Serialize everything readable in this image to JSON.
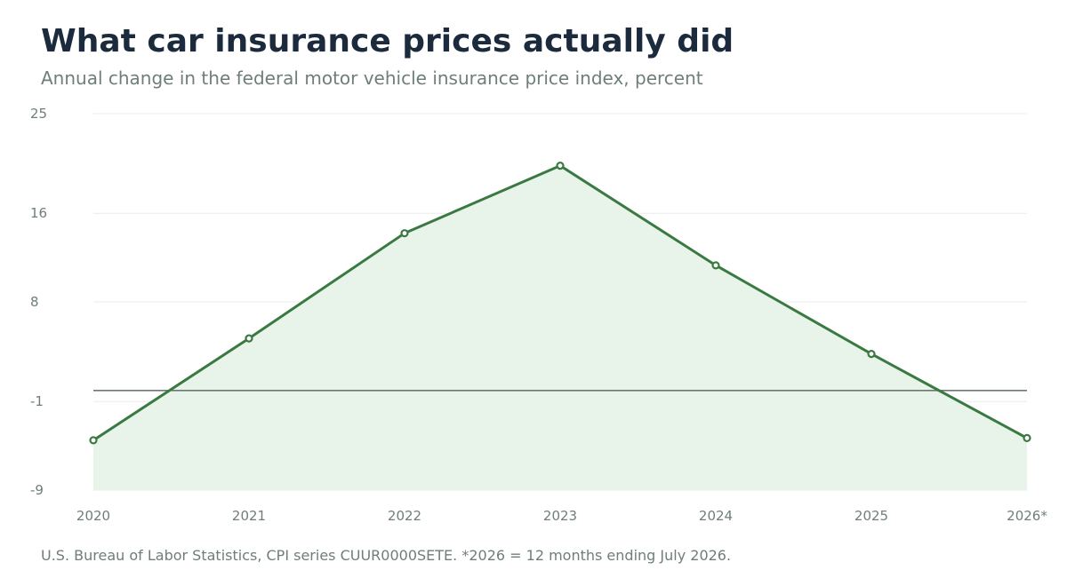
{
  "title": "What car insurance prices actually did",
  "subtitle": "Annual change in the federal motor vehicle insurance price index, percent",
  "source": "U.S. Bureau of Labor Statistics, CPI series CUUR0000SETE.  *2026 = 12 months ending July 2026.",
  "colors": {
    "line": "#3a7a42",
    "area": "#e8f4ea",
    "grid": "#ebebeb",
    "zero_line": "#6e7772",
    "text_dark": "#1b2a3d",
    "text_muted": "#6f7f77"
  },
  "chart_data": {
    "type": "area",
    "title": "What car insurance prices actually did",
    "subtitle": "Annual change in the federal motor vehicle insurance price index, percent",
    "xlabel": "",
    "ylabel": "",
    "categories": [
      "2020",
      "2021",
      "2022",
      "2023",
      "2024",
      "2025",
      "2026*"
    ],
    "series": [
      {
        "values": [
          -4.5,
          4.7,
          14.2,
          20.3,
          11.3,
          3.3,
          -4.3
        ]
      }
    ],
    "ylim": [
      -9,
      25
    ],
    "yticks": [
      25,
      16,
      8,
      -1,
      -9
    ],
    "reference_line": 0,
    "grid": true,
    "legend": "none"
  }
}
